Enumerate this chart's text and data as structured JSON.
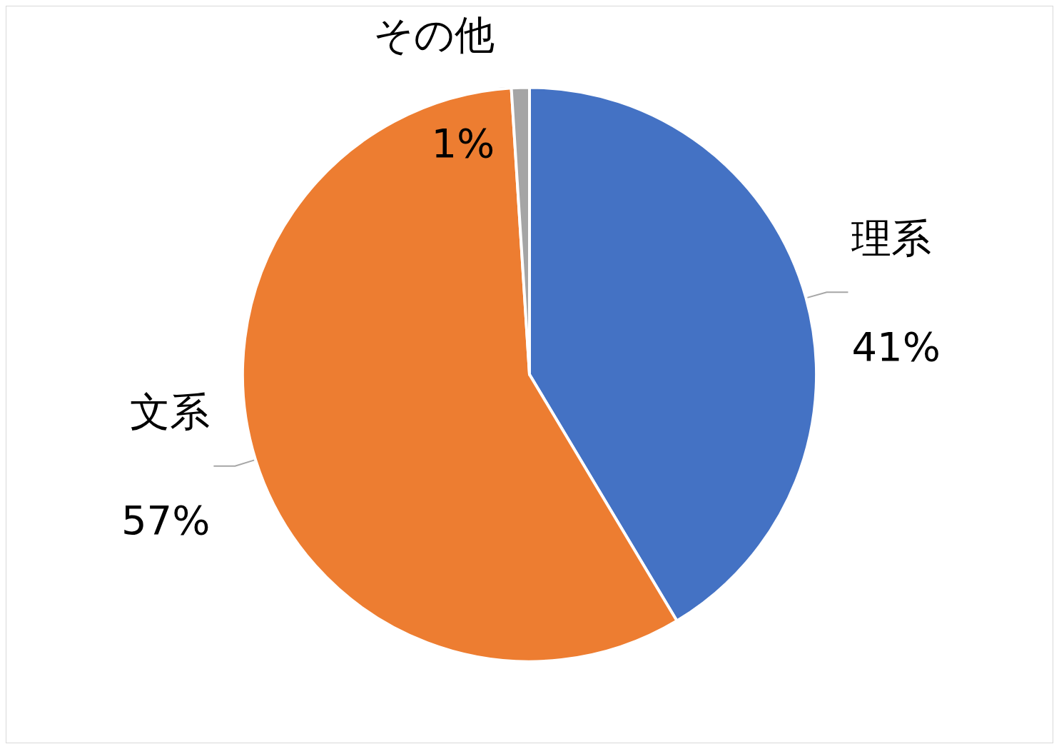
{
  "chart_data": {
    "type": "pie",
    "categories": [
      "理系",
      "文系",
      "その他"
    ],
    "values": [
      41,
      57,
      1
    ],
    "colors": [
      "#4472c4",
      "#ed7d31",
      "#a5a5a5"
    ],
    "value_labels": [
      "41%",
      "57%",
      "1%"
    ]
  }
}
